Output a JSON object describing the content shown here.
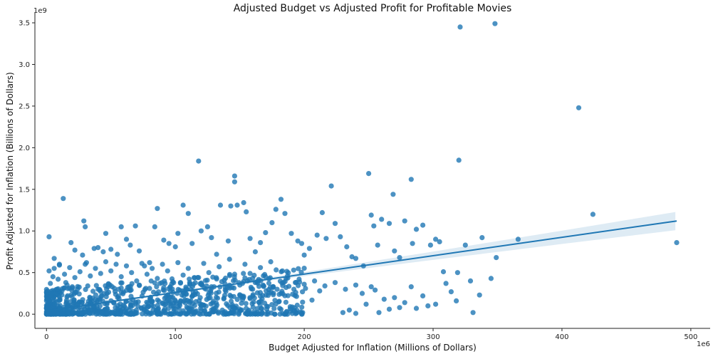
{
  "chart_data": {
    "type": "scatter",
    "title": "Adjusted Budget vs Adjusted Profit for Profitable Movies",
    "xlabel": "Budget Adjusted for Inflation (Millions of Dollars)",
    "ylabel": "Profit Adjusted for Inflation (Billions of Dollars)",
    "x_offset_label": "1e6",
    "y_offset_label": "1e9",
    "xlim": [
      -9,
      515
    ],
    "ylim": [
      -0.17,
      3.62
    ],
    "xticks": [
      0,
      100,
      200,
      300,
      400,
      500
    ],
    "yticks": [
      0.0,
      0.5,
      1.0,
      1.5,
      2.0,
      2.5,
      3.0,
      3.5
    ],
    "xtick_labels": [
      "0",
      "100",
      "200",
      "300",
      "400",
      "500"
    ],
    "ytick_labels": [
      "0.0",
      "0.5",
      "1.0",
      "1.5",
      "2.0",
      "2.5",
      "3.0",
      "3.5"
    ],
    "grid": false,
    "colors": {
      "points": "#1f77b4",
      "line": "#1f77b4",
      "band": "#1f77b4"
    },
    "point_opacity": 0.8,
    "regression": {
      "x": [
        0,
        489
      ],
      "y": [
        0.04,
        1.12
      ],
      "ci_halfwidth_at_x": [
        [
          0,
          0.02
        ],
        [
          100,
          0.01
        ],
        [
          200,
          0.025
        ],
        [
          300,
          0.05
        ],
        [
          400,
          0.08
        ],
        [
          489,
          0.11
        ]
      ]
    },
    "series": [
      {
        "values": [
          [
            2,
            0.93
          ],
          [
            13,
            1.39
          ],
          [
            29,
            1.12
          ],
          [
            30,
            1.05
          ],
          [
            19,
            0.86
          ],
          [
            22,
            0.77
          ],
          [
            6,
            0.67
          ],
          [
            10,
            0.59
          ],
          [
            2,
            0.52
          ],
          [
            5,
            0.45
          ],
          [
            9,
            0.42
          ],
          [
            3,
            0.37
          ],
          [
            15,
            0.38
          ],
          [
            20,
            0.33
          ],
          [
            28,
            0.71
          ],
          [
            31,
            0.62
          ],
          [
            37,
            0.79
          ],
          [
            40,
            0.8
          ],
          [
            44,
            0.75
          ],
          [
            46,
            0.97
          ],
          [
            50,
            0.78
          ],
          [
            55,
            0.72
          ],
          [
            58,
            1.05
          ],
          [
            62,
            0.9
          ],
          [
            65,
            0.83
          ],
          [
            69,
            1.06
          ],
          [
            72,
            0.76
          ],
          [
            76,
            0.58
          ],
          [
            80,
            0.62
          ],
          [
            84,
            1.05
          ],
          [
            86,
            1.27
          ],
          [
            91,
            0.89
          ],
          [
            95,
            0.85
          ],
          [
            100,
            0.81
          ],
          [
            102,
            0.97
          ],
          [
            106,
            1.31
          ],
          [
            110,
            1.21
          ],
          [
            113,
            0.85
          ],
          [
            118,
            1.84
          ],
          [
            120,
            1.0
          ],
          [
            125,
            1.05
          ],
          [
            128,
            0.92
          ],
          [
            132,
            0.72
          ],
          [
            135,
            1.31
          ],
          [
            141,
            0.88
          ],
          [
            143,
            1.3
          ],
          [
            146,
            1.66
          ],
          [
            146,
            1.59
          ],
          [
            148,
            1.31
          ],
          [
            153,
            1.34
          ],
          [
            155,
            1.23
          ],
          [
            158,
            0.91
          ],
          [
            162,
            0.75
          ],
          [
            166,
            0.86
          ],
          [
            170,
            0.98
          ],
          [
            175,
            1.1
          ],
          [
            178,
            1.26
          ],
          [
            182,
            1.38
          ],
          [
            185,
            1.21
          ],
          [
            190,
            0.97
          ],
          [
            195,
            0.88
          ],
          [
            198,
            0.85
          ],
          [
            200,
            0.71
          ],
          [
            204,
            0.79
          ],
          [
            210,
            0.95
          ],
          [
            214,
            1.22
          ],
          [
            217,
            0.91
          ],
          [
            221,
            1.54
          ],
          [
            224,
            1.09
          ],
          [
            228,
            0.93
          ],
          [
            233,
            0.81
          ],
          [
            237,
            0.69
          ],
          [
            240,
            0.67
          ],
          [
            246,
            0.58
          ],
          [
            250,
            1.69
          ],
          [
            252,
            1.19
          ],
          [
            254,
            1.06
          ],
          [
            257,
            0.83
          ],
          [
            260,
            1.14
          ],
          [
            266,
            1.09
          ],
          [
            269,
            1.44
          ],
          [
            270,
            0.76
          ],
          [
            274,
            0.68
          ],
          [
            278,
            1.12
          ],
          [
            283,
            1.62
          ],
          [
            284,
            0.85
          ],
          [
            287,
            1.02
          ],
          [
            292,
            1.07
          ],
          [
            298,
            0.83
          ],
          [
            302,
            0.9
          ],
          [
            305,
            0.87
          ],
          [
            308,
            0.51
          ],
          [
            310,
            0.37
          ],
          [
            314,
            0.27
          ],
          [
            318,
            0.16
          ],
          [
            319,
            0.5
          ],
          [
            320,
            1.85
          ],
          [
            321,
            3.45
          ],
          [
            325,
            0.83
          ],
          [
            329,
            0.4
          ],
          [
            331,
            0.02
          ],
          [
            336,
            0.23
          ],
          [
            338,
            0.92
          ],
          [
            345,
            0.43
          ],
          [
            348,
            3.49
          ],
          [
            349,
            0.68
          ],
          [
            366,
            0.9
          ],
          [
            413,
            2.48
          ],
          [
            424,
            1.2
          ],
          [
            489,
            0.86
          ],
          [
            255,
            0.29
          ],
          [
            258,
            0.02
          ],
          [
            262,
            0.18
          ],
          [
            266,
            0.06
          ],
          [
            270,
            0.2
          ],
          [
            274,
            0.08
          ],
          [
            278,
            0.14
          ],
          [
            283,
            0.33
          ],
          [
            287,
            0.07
          ],
          [
            292,
            0.22
          ],
          [
            296,
            0.1
          ],
          [
            302,
            0.12
          ],
          [
            230,
            0.02
          ],
          [
            235,
            0.05
          ],
          [
            240,
            0.01
          ],
          [
            245,
            0.25
          ],
          [
            248,
            0.12
          ],
          [
            252,
            0.33
          ],
          [
            212,
            0.28
          ],
          [
            206,
            0.17
          ],
          [
            201,
            0.31
          ],
          [
            196,
            0.42
          ],
          [
            191,
            0.24
          ],
          [
            187,
            0.46
          ],
          [
            183,
            0.52
          ],
          [
            179,
            0.3
          ],
          [
            174,
            0.63
          ],
          [
            170,
            0.45
          ],
          [
            166,
            0.56
          ],
          [
            162,
            0.38
          ],
          [
            158,
            0.49
          ],
          [
            154,
            0.6
          ],
          [
            150,
            0.35
          ],
          [
            146,
            0.48
          ],
          [
            142,
            0.66
          ],
          [
            138,
            0.41
          ],
          [
            134,
            0.57
          ],
          [
            130,
            0.33
          ],
          [
            126,
            0.5
          ],
          [
            122,
            0.61
          ],
          [
            118,
            0.44
          ],
          [
            114,
            0.36
          ],
          [
            110,
            0.55
          ],
          [
            106,
            0.47
          ],
          [
            102,
            0.62
          ],
          [
            98,
            0.39
          ],
          [
            94,
            0.52
          ],
          [
            90,
            0.6
          ],
          [
            86,
            0.43
          ],
          [
            82,
            0.55
          ],
          [
            78,
            0.48
          ],
          [
            74,
            0.61
          ],
          [
            70,
            0.4
          ],
          [
            66,
            0.5
          ],
          [
            62,
            0.58
          ],
          [
            58,
            0.45
          ],
          [
            54,
            0.6
          ],
          [
            50,
            0.52
          ],
          [
            46,
            0.63
          ],
          [
            42,
            0.49
          ],
          [
            38,
            0.55
          ],
          [
            34,
            0.46
          ],
          [
            30,
            0.6
          ],
          [
            26,
            0.51
          ],
          [
            22,
            0.44
          ],
          [
            18,
            0.56
          ],
          [
            14,
            0.48
          ],
          [
            10,
            0.6
          ],
          [
            6,
            0.55
          ],
          [
            4,
            0.25
          ],
          [
            8,
            0.3
          ],
          [
            12,
            0.28
          ],
          [
            16,
            0.35
          ],
          [
            24,
            0.3
          ],
          [
            32,
            0.34
          ],
          [
            40,
            0.3
          ],
          [
            48,
            0.36
          ],
          [
            56,
            0.3
          ],
          [
            64,
            0.33
          ],
          [
            72,
            0.35
          ],
          [
            80,
            0.31
          ],
          [
            88,
            0.37
          ],
          [
            96,
            0.33
          ],
          [
            104,
            0.38
          ],
          [
            112,
            0.3
          ],
          [
            120,
            0.36
          ],
          [
            128,
            0.33
          ],
          [
            136,
            0.39
          ],
          [
            144,
            0.32
          ],
          [
            152,
            0.37
          ],
          [
            160,
            0.3
          ],
          [
            168,
            0.35
          ],
          [
            176,
            0.33
          ],
          [
            184,
            0.38
          ],
          [
            192,
            0.3
          ],
          [
            200,
            0.36
          ],
          [
            208,
            0.4
          ],
          [
            216,
            0.34
          ],
          [
            224,
            0.38
          ],
          [
            232,
            0.3
          ],
          [
            240,
            0.35
          ]
        ]
      }
    ]
  }
}
